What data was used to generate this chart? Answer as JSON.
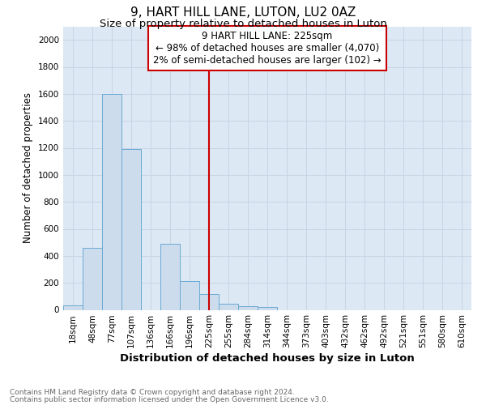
{
  "title": "9, HART HILL LANE, LUTON, LU2 0AZ",
  "subtitle": "Size of property relative to detached houses in Luton",
  "xlabel": "Distribution of detached houses by size in Luton",
  "ylabel": "Number of detached properties",
  "categories": [
    "18sqm",
    "48sqm",
    "77sqm",
    "107sqm",
    "136sqm",
    "166sqm",
    "196sqm",
    "225sqm",
    "255sqm",
    "284sqm",
    "314sqm",
    "344sqm",
    "373sqm",
    "403sqm",
    "432sqm",
    "462sqm",
    "492sqm",
    "521sqm",
    "551sqm",
    "580sqm",
    "610sqm"
  ],
  "values": [
    35,
    460,
    1600,
    1190,
    0,
    490,
    215,
    120,
    45,
    25,
    20,
    0,
    0,
    0,
    0,
    0,
    0,
    0,
    0,
    0,
    0
  ],
  "bar_color": "#cddcec",
  "bar_edge_color": "#6aaad4",
  "vline_color": "#cc0000",
  "annotation_text": "9 HART HILL LANE: 225sqm\n← 98% of detached houses are smaller (4,070)\n2% of semi-detached houses are larger (102) →",
  "annotation_box_color": "#ffffff",
  "annotation_box_edge": "#cc0000",
  "ylim": [
    0,
    2100
  ],
  "yticks": [
    0,
    200,
    400,
    600,
    800,
    1000,
    1200,
    1400,
    1600,
    1800,
    2000
  ],
  "grid_color": "#c8d4e4",
  "background_color": "#dce8f4",
  "footnote1": "Contains HM Land Registry data © Crown copyright and database right 2024.",
  "footnote2": "Contains public sector information licensed under the Open Government Licence v3.0.",
  "title_fontsize": 11,
  "subtitle_fontsize": 9.5,
  "xlabel_fontsize": 9.5,
  "ylabel_fontsize": 8.5,
  "tick_fontsize": 7.5,
  "annot_fontsize": 8.5,
  "footnote_fontsize": 6.5
}
